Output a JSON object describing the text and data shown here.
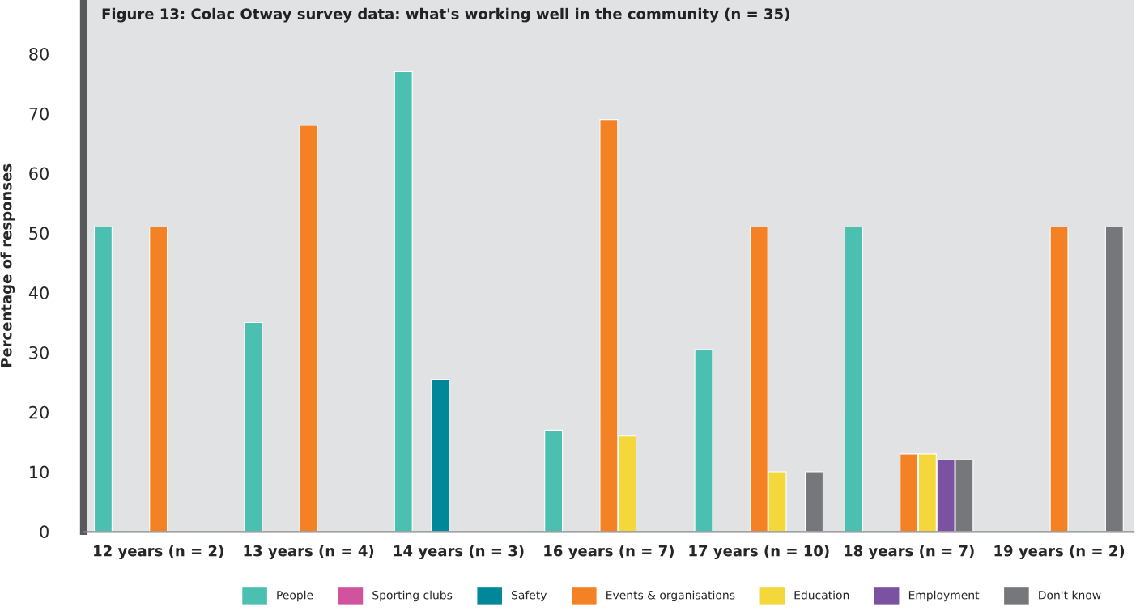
{
  "chart_data": {
    "type": "bar",
    "title": "Figure 13: Colac Otway survey data: what's working well in the community (n = 35)",
    "ylabel": "Percentage of responses",
    "categories": [
      "12 years (n = 2)",
      "13 years (n = 4)",
      "14 years (n = 3)",
      "16 years (n = 7)",
      "17 years (n = 10)",
      "18 years (n = 7)",
      "19 years (n = 2)"
    ],
    "series": [
      {
        "name": "People",
        "color": "#4bbfb0",
        "values": [
          51,
          35,
          77,
          17,
          30.5,
          51,
          null
        ]
      },
      {
        "name": "Sporting clubs",
        "color": "#d1539e",
        "values": [
          null,
          null,
          null,
          null,
          null,
          null,
          null
        ]
      },
      {
        "name": "Safety",
        "color": "#00889a",
        "values": [
          null,
          null,
          25.5,
          null,
          null,
          null,
          null
        ]
      },
      {
        "name": "Events & organisations",
        "color": "#f48225",
        "values": [
          51,
          68,
          null,
          69,
          51,
          13,
          51
        ]
      },
      {
        "name": "Education",
        "color": "#f4d83b",
        "values": [
          null,
          null,
          null,
          16,
          10,
          13,
          null
        ]
      },
      {
        "name": "Employment",
        "color": "#7b52a1",
        "values": [
          null,
          null,
          null,
          null,
          null,
          12,
          null
        ]
      },
      {
        "name": "Don't know",
        "color": "#76777b",
        "values": [
          null,
          null,
          null,
          null,
          10,
          12,
          51
        ]
      }
    ],
    "ylim": [
      0,
      89
    ],
    "yticks": [
      0,
      10,
      20,
      30,
      40,
      50,
      60,
      70,
      80
    ],
    "grid": false,
    "legend": "bottom"
  }
}
